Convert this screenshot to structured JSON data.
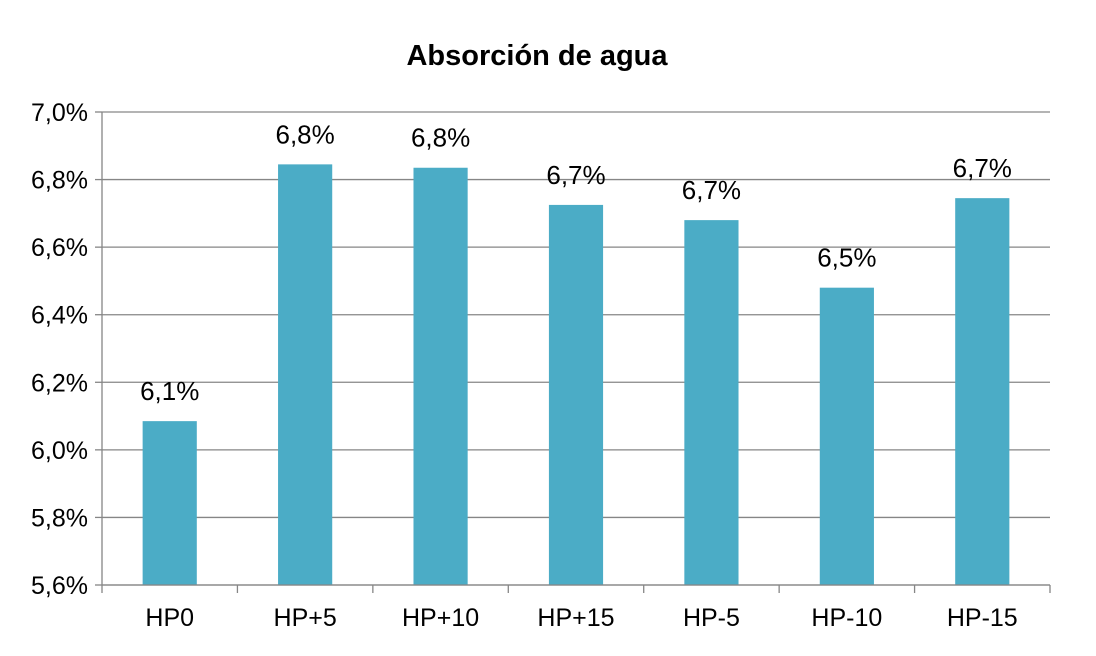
{
  "chart_data": {
    "type": "bar",
    "title": "Absorción de agua",
    "xlabel": "",
    "ylabel": "",
    "categories": [
      "HP0",
      "HP+5",
      "HP+10",
      "HP+15",
      "HP-5",
      "HP-10",
      "HP-15"
    ],
    "values": [
      6.085,
      6.845,
      6.835,
      6.725,
      6.68,
      6.48,
      6.745
    ],
    "data_labels": [
      "6,1%",
      "6,8%",
      "6,8%",
      "6,7%",
      "6,7%",
      "6,5%",
      "6,7%"
    ],
    "ylim": [
      5.6,
      7.0
    ],
    "yticks": [
      5.6,
      5.8,
      6.0,
      6.2,
      6.4,
      6.6,
      6.8,
      7.0
    ],
    "ytick_labels": [
      "5,6%",
      "5,8%",
      "6,0%",
      "6,2%",
      "6,4%",
      "6,6%",
      "6,8%",
      "7,0%"
    ],
    "grid": true,
    "legend": "none",
    "colors": {
      "bar": "#4BACC6",
      "grid": "#868686",
      "axis": "#868686"
    }
  }
}
